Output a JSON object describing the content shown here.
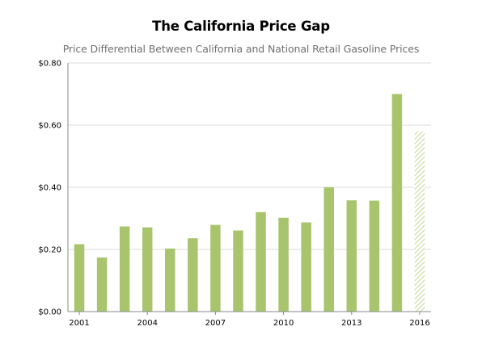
{
  "chart_data": {
    "type": "bar",
    "title": "The California Price Gap",
    "subtitle": "Price Differential Between California and National Retail Gasoline Prices",
    "xlabel": "",
    "ylabel": "",
    "categories": [
      "2001",
      "2002",
      "2003",
      "2004",
      "2005",
      "2006",
      "2007",
      "2008",
      "2009",
      "2010",
      "2011",
      "2012",
      "2013",
      "2014",
      "2015",
      "2016"
    ],
    "x_tick_labels": [
      "2001",
      "2004",
      "2007",
      "2010",
      "2013",
      "2016"
    ],
    "y_tick_labels": [
      "$0.00",
      "$0.20",
      "$0.40",
      "$0.60",
      "$0.80"
    ],
    "y_ticks": [
      0,
      0.2,
      0.4,
      0.6,
      0.8
    ],
    "ylim": [
      0,
      0.8
    ],
    "grid": true,
    "legend": "none",
    "series": [
      {
        "values": [
          0.217,
          0.174,
          0.274,
          0.271,
          0.203,
          0.236,
          0.279,
          0.261,
          0.32,
          0.302,
          0.287,
          0.4,
          0.358,
          0.357,
          0.7,
          0.58
        ],
        "hatched": [
          false,
          false,
          false,
          false,
          false,
          false,
          false,
          false,
          false,
          false,
          false,
          false,
          false,
          false,
          false,
          true
        ]
      }
    ],
    "colors": {
      "bar": "#a8c56e",
      "hatched_bar": "#c6d99a",
      "grid": "#cfcfcf",
      "axis": "#8a8a8a"
    }
  }
}
